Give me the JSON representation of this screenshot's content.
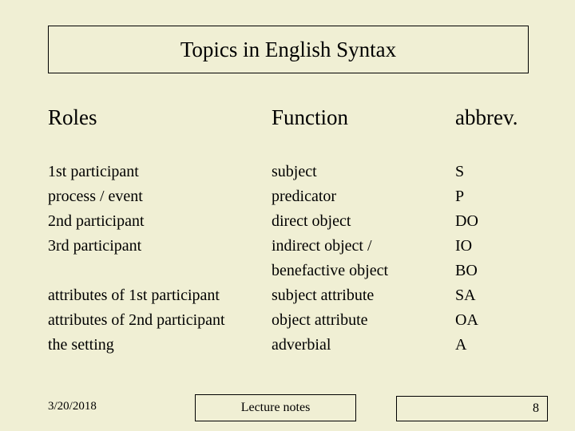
{
  "background_color": "#f0efd4",
  "text_color": "#000000",
  "font_family": "Times New Roman",
  "title_fontsize": 27,
  "header_fontsize": 27,
  "body_fontsize": 20,
  "body_lineheight": 31,
  "footer_fontsize": 16,
  "title": "Topics in English Syntax",
  "headers": {
    "roles": "Roles",
    "function": "Function",
    "abbrev": "abbrev."
  },
  "columns": {
    "roles": [
      "1st participant",
      "process / event",
      "2nd participant",
      "3rd participant",
      "",
      "attributes of 1st participant",
      "attributes of 2nd participant",
      "the setting"
    ],
    "function": [
      "subject",
      "predicator",
      "direct object",
      "indirect object /",
      "benefactive object",
      "subject attribute",
      "object attribute",
      "adverbial"
    ],
    "abbrev": [
      "S",
      "P",
      "DO",
      "IO",
      "BO",
      "SA",
      "OA",
      "A"
    ]
  },
  "footer": {
    "date": "3/20/2018",
    "center": "Lecture notes",
    "page": "8"
  }
}
